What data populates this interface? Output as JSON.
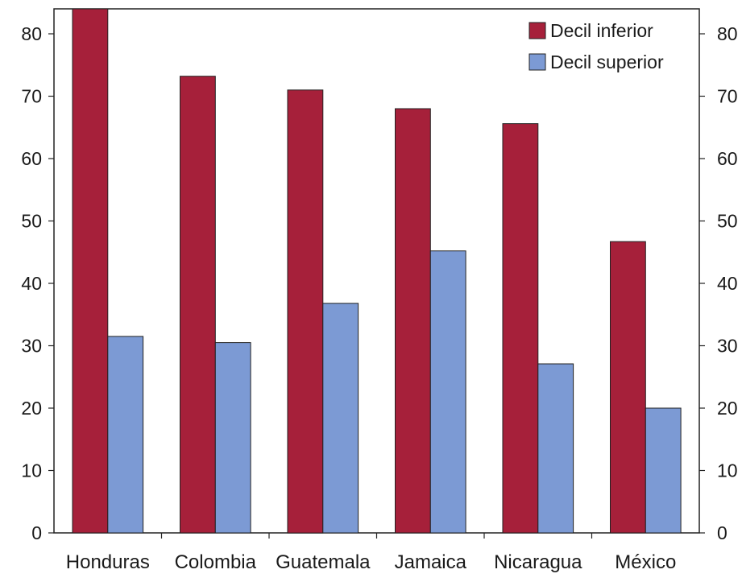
{
  "chart_data": {
    "type": "bar",
    "categories": [
      "Honduras",
      "Colombia",
      "Guatemala",
      "Jamaica",
      "Nicaragua",
      "México"
    ],
    "series": [
      {
        "name": "Decil inferior",
        "values": [
          84,
          73.2,
          71,
          68,
          65.6,
          46.7
        ],
        "color": "#a6203a"
      },
      {
        "name": "Decil superior",
        "values": [
          31.5,
          30.5,
          36.8,
          45.2,
          27.1,
          20
        ],
        "color": "#7c9ad4"
      }
    ],
    "ylim": [
      0,
      84
    ],
    "yticks": [
      0,
      10,
      20,
      30,
      40,
      50,
      60,
      70,
      80
    ],
    "secondary_yticks": [
      0,
      10,
      20,
      30,
      40,
      50,
      60,
      70,
      80
    ],
    "grid": false,
    "legend_position": "top-right",
    "title": "",
    "xlabel": "",
    "ylabel": ""
  }
}
